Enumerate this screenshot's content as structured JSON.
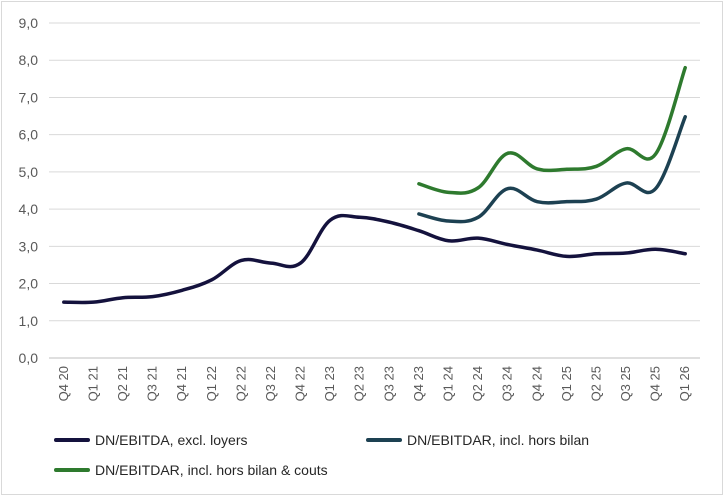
{
  "chart_data": {
    "type": "line",
    "title": "",
    "xlabel": "",
    "ylabel": "",
    "ylim": [
      0,
      9
    ],
    "y_ticks": [
      "0,0",
      "1,0",
      "2,0",
      "3,0",
      "4,0",
      "5,0",
      "6,0",
      "7,0",
      "8,0",
      "9,0"
    ],
    "grid": "horizontal",
    "legend_position": "bottom",
    "categories": [
      "Q4 20",
      "Q1 21",
      "Q2 21",
      "Q3 21",
      "Q4 21",
      "Q1 22",
      "Q2 22",
      "Q3 22",
      "Q4 22",
      "Q1 23",
      "Q2 23",
      "Q3 23",
      "Q4 23",
      "Q1 24",
      "Q2 24",
      "Q3 24",
      "Q4 24",
      "Q1 25",
      "Q2 25",
      "Q3 25",
      "Q4 25",
      "Q1 26"
    ],
    "series": [
      {
        "name": "DN/EBITDA, excl. loyers",
        "color": "#14123d",
        "values": [
          1.5,
          1.5,
          1.62,
          1.65,
          1.82,
          2.1,
          2.62,
          2.55,
          2.55,
          3.7,
          3.78,
          3.65,
          3.42,
          3.15,
          3.22,
          3.05,
          2.9,
          2.73,
          2.8,
          2.82,
          2.92,
          2.8
        ]
      },
      {
        "name": "DN/EBITDAR, incl. hors bilan",
        "color": "#1d4152",
        "values": [
          null,
          null,
          null,
          null,
          null,
          null,
          null,
          null,
          null,
          null,
          null,
          null,
          3.87,
          3.68,
          3.78,
          4.55,
          4.2,
          4.2,
          4.27,
          4.7,
          4.55,
          6.48
        ]
      },
      {
        "name": "DN/EBITDAR, incl. hors bilan & couts",
        "color": "#2e7a2e",
        "values": [
          null,
          null,
          null,
          null,
          null,
          null,
          null,
          null,
          null,
          null,
          null,
          null,
          4.68,
          4.45,
          4.57,
          5.5,
          5.08,
          5.07,
          5.15,
          5.62,
          5.48,
          7.8
        ]
      }
    ]
  }
}
